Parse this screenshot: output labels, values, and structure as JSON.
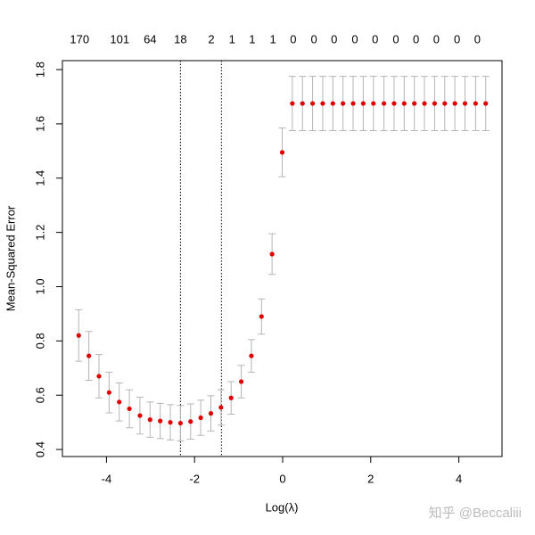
{
  "chart_data": {
    "type": "errorbar",
    "x_label": "Log(λ)",
    "y_label": "Mean-Squared Error",
    "xlim": [
      -5.0,
      4.98
    ],
    "ylim": [
      0.374,
      1.833
    ],
    "xticks": [
      -4,
      -2,
      0,
      2,
      4
    ],
    "yticks": [
      0.4,
      0.6,
      0.8,
      {
        "value": 1,
        "label": "1.0"
      },
      1.2,
      1.4,
      1.6,
      1.8
    ],
    "top_ticks": [
      {
        "value": -4.61,
        "label": "170"
      },
      {
        "value": -3.7,
        "label": "101"
      },
      {
        "value": -3.01,
        "label": "64"
      },
      {
        "value": -2.32,
        "label": "18"
      },
      {
        "value": -1.62,
        "label": "2"
      },
      {
        "value": -1.15,
        "label": "1"
      },
      {
        "value": -0.69,
        "label": "1"
      },
      {
        "value": -0.22,
        "label": "1"
      },
      {
        "value": 0.24,
        "label": "0"
      },
      {
        "value": 0.71,
        "label": "0"
      },
      {
        "value": 1.17,
        "label": "0"
      },
      {
        "value": 1.64,
        "label": "0"
      },
      {
        "value": 2.1,
        "label": "0"
      },
      {
        "value": 2.57,
        "label": "0"
      },
      {
        "value": 3.03,
        "label": "0"
      },
      {
        "value": 3.49,
        "label": "0"
      },
      {
        "value": 3.96,
        "label": "0"
      },
      {
        "value": 4.42,
        "label": "0"
      }
    ],
    "vlines": [
      -2.32,
      -1.39
    ],
    "point_color": "#e00000",
    "error_color": "#b5b5b5",
    "x": [
      -4.63,
      -4.4,
      -4.17,
      -3.94,
      -3.71,
      -3.48,
      -3.24,
      -3.01,
      -2.78,
      -2.55,
      -2.32,
      -2.09,
      -1.86,
      -1.63,
      -1.4,
      -1.17,
      -0.94,
      -0.71,
      -0.48,
      -0.24,
      -0.01,
      0.22,
      0.45,
      0.68,
      0.91,
      1.14,
      1.37,
      1.6,
      1.83,
      2.06,
      2.3,
      2.53,
      2.76,
      2.99,
      3.22,
      3.45,
      3.68,
      3.91,
      4.14,
      4.38,
      4.61
    ],
    "values": [
      0.82,
      0.745,
      0.67,
      0.61,
      0.575,
      0.55,
      0.525,
      0.51,
      0.505,
      0.5,
      0.497,
      0.503,
      0.517,
      0.533,
      0.555,
      0.59,
      0.65,
      0.745,
      0.89,
      1.12,
      1.495,
      1.675,
      1.675,
      1.675,
      1.675,
      1.675,
      1.675,
      1.675,
      1.675,
      1.675,
      1.675,
      1.675,
      1.675,
      1.675,
      1.675,
      1.675,
      1.675,
      1.675,
      1.675,
      1.675,
      1.675
    ],
    "errors": [
      0.095,
      0.09,
      0.08,
      0.075,
      0.07,
      0.07,
      0.068,
      0.065,
      0.065,
      0.065,
      0.065,
      0.065,
      0.065,
      0.065,
      0.065,
      0.06,
      0.06,
      0.06,
      0.065,
      0.075,
      0.09,
      0.1,
      0.1,
      0.1,
      0.1,
      0.1,
      0.1,
      0.1,
      0.1,
      0.1,
      0.1,
      0.1,
      0.1,
      0.1,
      0.1,
      0.1,
      0.1,
      0.1,
      0.1,
      0.1,
      0.1
    ]
  },
  "watermark": "知乎 @Beccaliii"
}
